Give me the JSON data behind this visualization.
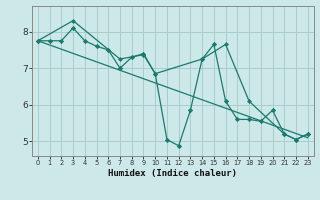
{
  "xlabel": "Humidex (Indice chaleur)",
  "bg_color": "#cce8e8",
  "grid_color": "#aacccc",
  "line_color": "#1a7a6e",
  "xlim": [
    -0.5,
    23.5
  ],
  "ylim": [
    4.6,
    8.7
  ],
  "xticks": [
    0,
    1,
    2,
    3,
    4,
    5,
    6,
    7,
    8,
    9,
    10,
    11,
    12,
    13,
    14,
    15,
    16,
    17,
    18,
    19,
    20,
    21,
    22,
    23
  ],
  "yticks": [
    5,
    6,
    7,
    8
  ],
  "line1_x": [
    0,
    1,
    2,
    3,
    4,
    5,
    6,
    7,
    8,
    9,
    10,
    11,
    12,
    13,
    14,
    15,
    16,
    17,
    18,
    19,
    20,
    21,
    22,
    23
  ],
  "line1_y": [
    7.75,
    7.75,
    7.75,
    8.1,
    7.75,
    7.6,
    7.5,
    7.0,
    7.3,
    7.4,
    6.85,
    5.05,
    4.88,
    5.85,
    7.25,
    7.65,
    6.1,
    5.6,
    5.6,
    5.55,
    5.85,
    5.2,
    5.05,
    5.2
  ],
  "line2_x": [
    0,
    3,
    7,
    9,
    10,
    14,
    16,
    18,
    21,
    22,
    23
  ],
  "line2_y": [
    7.75,
    8.3,
    7.25,
    7.37,
    6.85,
    7.25,
    7.65,
    6.1,
    5.2,
    5.05,
    5.2
  ],
  "line3_x": [
    0,
    23
  ],
  "line3_y": [
    7.75,
    5.1
  ]
}
